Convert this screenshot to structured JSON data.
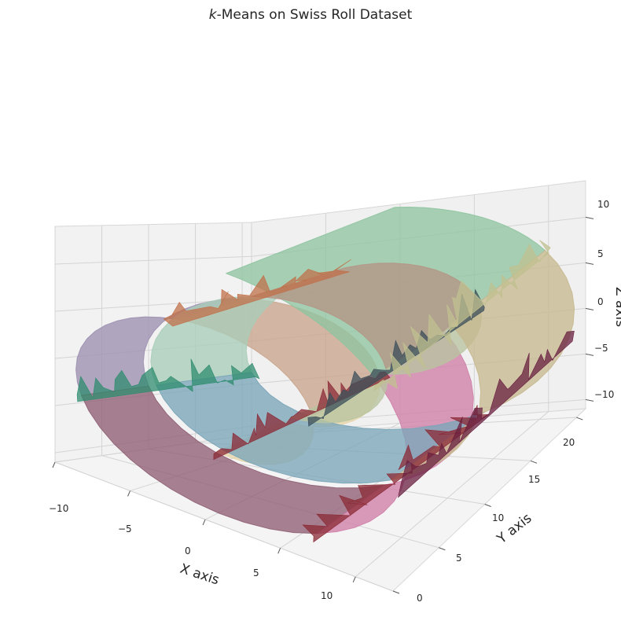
{
  "chart_data": {
    "type": "surface3d",
    "title_italic": "k",
    "title_rest": "-Means on Swiss Roll Dataset",
    "xlabel": "X axis",
    "ylabel": "Y axis",
    "zlabel": "Z axis",
    "xlim": [
      -10,
      12.5
    ],
    "ylim": [
      0,
      21
    ],
    "zlim": [
      -11,
      14
    ],
    "xticks": [
      "−10",
      "−5",
      "0",
      "5",
      "10"
    ],
    "yticks": [
      "0",
      "5",
      "10",
      "15",
      "20"
    ],
    "zticks": [
      "10",
      "5",
      "0",
      "−5",
      "−10"
    ],
    "grid": true,
    "pane_color": "#f2f2f2",
    "clusters": [
      {
        "color": "#e6d5a8",
        "t_range": [
          4.7,
          6.6
        ],
        "y_range": [
          1,
          9
        ]
      },
      {
        "color": "#c9a48c",
        "t_range": [
          6.6,
          8.2
        ],
        "y_range": [
          1,
          9
        ]
      },
      {
        "color": "#b8c4a0",
        "t_range": [
          4.7,
          6.6
        ],
        "y_range": [
          9,
          20
        ]
      },
      {
        "color": "#a9cdb8",
        "t_range": [
          8.2,
          9.8
        ],
        "y_range": [
          9,
          20
        ]
      },
      {
        "color": "#8f5f74",
        "t_range": [
          9.8,
          11.6
        ],
        "y_range": [
          1,
          9
        ]
      },
      {
        "color": "#7aa5b8",
        "t_range": [
          9.8,
          11.6
        ],
        "y_range": [
          9,
          20
        ]
      },
      {
        "color": "#cf7fa8",
        "t_range": [
          11.6,
          13.2
        ],
        "y_range": [
          1,
          9
        ]
      },
      {
        "color": "#c7b98f",
        "t_range": [
          11.6,
          13.2
        ],
        "y_range": [
          9,
          20
        ]
      },
      {
        "color": "#8fc4a0",
        "t_range": [
          13.2,
          14.1
        ],
        "y_range": [
          1,
          20
        ]
      },
      {
        "color": "#9c8fb0",
        "t_range": [
          8.2,
          9.8
        ],
        "y_range": [
          1,
          9
        ]
      },
      {
        "color": "#b59585",
        "t_range": [
          6.6,
          8.2
        ],
        "y_range": [
          9,
          20
        ]
      }
    ],
    "spike_colors": [
      "#8b2a35",
      "#3c4f5a",
      "#c0c090",
      "#2f8c6f",
      "#c0704a",
      "#6a2040"
    ]
  }
}
